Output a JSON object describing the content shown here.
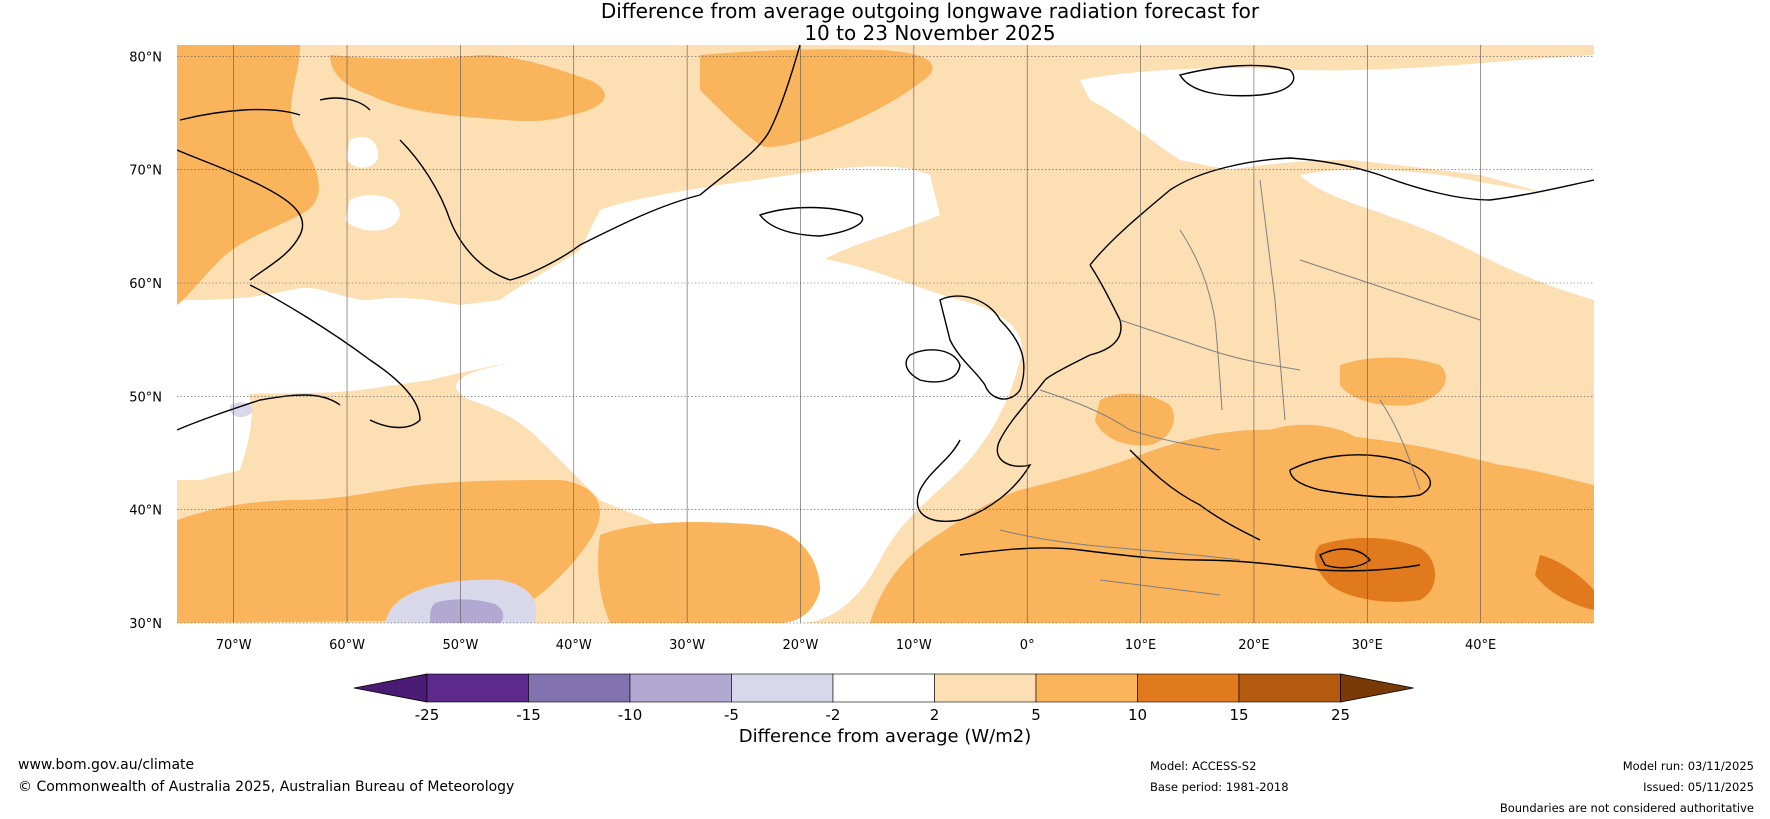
{
  "title_line1": "Difference from average outgoing longwave radiation forecast for",
  "title_line2": "10 to 23 November 2025",
  "map": {
    "lon_range": [
      -75,
      50
    ],
    "lat_range": [
      30,
      81
    ],
    "lat_labels": [
      "30°N",
      "40°N",
      "50°N",
      "60°N",
      "70°N",
      "80°N"
    ],
    "lat_values": [
      30,
      40,
      50,
      60,
      70,
      80
    ],
    "lon_labels": [
      "70°W",
      "60°W",
      "50°W",
      "40°W",
      "30°W",
      "20°W",
      "10°W",
      "0°",
      "10°E",
      "20°E",
      "30°E",
      "40°E"
    ],
    "lon_values": [
      -70,
      -60,
      -50,
      -40,
      -30,
      -20,
      -10,
      0,
      10,
      20,
      30,
      40
    ]
  },
  "colorbar": {
    "title": "Difference from average (W/m2)",
    "tick_labels": [
      "-25",
      "-15",
      "-10",
      "-5",
      "-2",
      "2",
      "5",
      "10",
      "15",
      "25"
    ],
    "colors": [
      "#4a1b74",
      "#5b2a8c",
      "#8272b0",
      "#b1a9d1",
      "#d9d8eb",
      "#ffffff",
      "#fddfb4",
      "#fab45c",
      "#e07a1c",
      "#b35a0f",
      "#7a3a08"
    ]
  },
  "footer": {
    "url": "www.bom.gov.au/climate",
    "copyright": "© Commonwealth of Australia 2025, Australian Bureau of Meteorology",
    "model": "Model: ACCESS-S2",
    "base_period": "Base period: 1981-2018",
    "model_run": "Model run: 03/11/2025",
    "issued": "Issued: 05/11/2025",
    "disclaimer": "Boundaries are not considered authoritative"
  }
}
